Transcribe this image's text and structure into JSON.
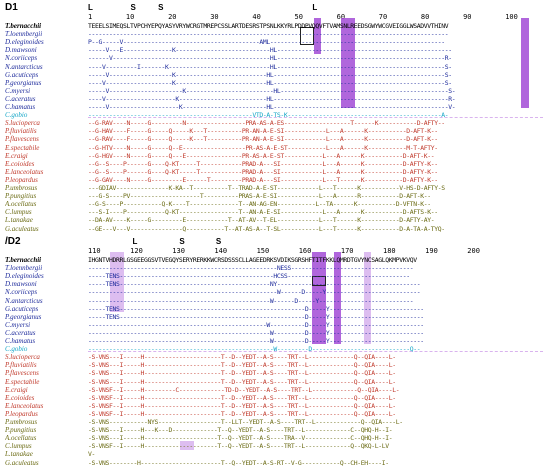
{
  "colors": {
    "bold_black": "#000000",
    "blue_group": "#1f2c9c",
    "gobio": "#14a6c7",
    "red_group": "#c0392b",
    "olive_group": "#6b6b14",
    "highlight": "#a24bd6"
  },
  "panels": [
    {
      "label": "D1",
      "markers": "L                 S          S                                                                   L",
      "ruler": "1        10        20        30        40        50        60        70        80        90        100",
      "rows": [
        {
          "species": "T.bernacchii",
          "seq": "TEEELSIMEQSLTVPCHYEPQYASYVRYWCRGTMREPCSSLARTDESRSTPSNLKKYRLPDDPVQQVFTVAMSNLREEDSGWYWCGVEIGGLWSADVVTHINV"
        },
        {
          "species": "T.loennbergii",
          "seq": "-------------------------------------------------------------------------------------------------------"
        },
        {
          "species": "D.eleginoides",
          "seq": "P--G-----V---------------------------------------AML--------------------------------------------------"
        },
        {
          "species": "D.mawsoni",
          "seq": "-----V---E--------------K---------------------------HL--------------------------------------------------"
        },
        {
          "species": "N.coriiceps",
          "seq": "------V---------------------------------------------HL------------------------------------------------R-"
        },
        {
          "species": "N.antarcticus",
          "seq": "----V---------I-------K-----------------------------HL------------------------------------------------S-"
        },
        {
          "species": "G.acuticeps",
          "seq": "-----V------------------K--------------------------HL-------------------------------------------------S-"
        },
        {
          "species": "P.georgianus",
          "seq": "----V-------------------K--------------------------HL-------------------------------------------------S-"
        },
        {
          "species": "C.myersi",
          "seq": "-----V---------------------K-------------------------HL------------------------------------------------S-"
        },
        {
          "species": "C.aceratus",
          "seq": "----V--------------------K-------------------------HL--------------------------------------------------R-"
        },
        {
          "species": "C.hamatus",
          "seq": "-----V--------------------K------------------------HL--------------------------------------------------V-"
        },
        {
          "species": "C.gobio",
          "seq": "-----------------------------------------------VTD-A-TS-K--------------------------------------------A-"
        },
        {
          "species": "S.lucioperca",
          "seq": "--G-RAV----N-----G---------N-----------------PRA-AS-A-ES-------------------T------K-----------D-AFTY--"
        },
        {
          "species": "P.fluviatilis",
          "seq": "--G-HAV----F-----G-----Q-----K---T----------PR-AN-A-E-SI------------L---A------K-----------D-AFT-K--"
        },
        {
          "species": "P.flavescens",
          "seq": "--G-RAV----F-----G-----Q-----K---T----------PR-AN-A-E-SI------------L---A------K-----------D-AFT-K--"
        },
        {
          "species": "E.spectabile",
          "seq": "--G-HTV----N-----G-----Q--E------------------PR-AS-A-E-ST-----------L---A------K-----------M-T-AFTY-"
        },
        {
          "species": "E.craigi",
          "seq": "--G-HGV----N-----G-----Q---E----------------PR-AS-A-E-ST-----------L---A------K-----------D-AFT-K--"
        },
        {
          "species": "E.coioides",
          "seq": "--G--S----P------G----Q-KT-----T------------PRAD-A---SI------------L---A------K-----------D-AFTY-K--"
        },
        {
          "species": "E.lanceolatus",
          "seq": "--G--S----P------G----Q-KT-----T------------PRAD-A---SI------------L---A------K-----------D-AFTY-K--"
        },
        {
          "species": "P.leopardus",
          "seq": "--G-GAV----N-----G---------E------T---------PRAD-A---SI------------L---T------K-----------D-AFTY-K--"
        },
        {
          "species": "P.umbrosus",
          "seq": "---GDIAV---------------K-KA--T----------T--TRAD-A-E-ST------------L---T------K-----------V-HS-D-AFTY-S"
        },
        {
          "species": "P.pungitius",
          "seq": "---G-S----PV--------------------T----------PRAS-A-E-SI------------L---A------R-----------D-AFT-K--"
        },
        {
          "species": "A.ocellatus",
          "seq": "--G-S----P-----------Q-K----T--------------T--AN-AG-EN-----------L--TA------K-----------D-VFTN-K--"
        },
        {
          "species": "C.lumpus",
          "seq": "---S-I----P-----------Q-KT-----------------T--AN-A-E-SI------------L---A------K-----------D-AFTS-K--"
        },
        {
          "species": "L.tanakae",
          "seq": "--DA-AV----K-----G---------E------------T--AT-AV--T-EL------------L---T------K-----------D-AFTY-AY-"
        },
        {
          "species": "G.aculeatus",
          "seq": "--GE---V---V---------------Q-----------T--AT-AS-A--T-SL-----------L---T------K-----------D-A-TA-A-TYQ-"
        }
      ]
    },
    {
      "label": "/D2",
      "markers": "                    L                   S              S",
      "ruler": "110       120       130       140       150       160       170       180       190       200",
      "rows": [
        {
          "species": "T.bernacchii",
          "seq": "IHGNTVHDRRLGSGEEGGSVTVEGQYSERYRERKKWCRSDSSSCLLAGEEDRKSVDIKSGRSHFTITFKKLQMRDTGVYNCSAGLQKMPVKVQV"
        },
        {
          "species": "T.loennbergii",
          "seq": "------------------------------------------------------NESS-----------------------------------"
        },
        {
          "species": "D.eleginoides",
          "seq": "-----TENS--------------------------------------------HCSS-----------------------------------"
        },
        {
          "species": "D.mawsoni",
          "seq": "-----TENS-------------------------------------------NY-----------------------------------------"
        },
        {
          "species": "N.coriiceps",
          "seq": "------------------------------------------------------W------D-----Y---------------------------"
        },
        {
          "species": "N.antarcticus",
          "seq": "----------------------------------------------------W------D-----Y---------------------------"
        },
        {
          "species": "G.acuticeps",
          "seq": "-----TENS-----------------------------------------------------D-----Y---------------------------"
        },
        {
          "species": "P.georgianus",
          "seq": "-----TENS-----------------------------------------------------D-----Y---------------------------"
        },
        {
          "species": "C.myersi",
          "seq": "---------------------------------------------------W----------D-----Y---------------------------"
        },
        {
          "species": "C.aceratus",
          "seq": "----------------------------------------------------W---------D-----Y---------------------------"
        },
        {
          "species": "C.hamatus",
          "seq": "----------------------------------------------------W---------D-----Y---------------------------"
        },
        {
          "species": "C.gobio",
          "seq": "-----------------------------------------------------W---------D----------------------------Q--"
        },
        {
          "species": "S.lucioperca",
          "seq": "-S-VNS---I-----H----------------------T--D--YEDT--A-S----TRT--L-------------Q--QIA----L-"
        },
        {
          "species": "P.fluviatilis",
          "seq": "-S-VNS---I-----H----------------------T--D--YEDT--A-S----TRT--L-------------Q--QIA----L-"
        },
        {
          "species": "P.flavescens",
          "seq": "-S-VNS---I-----H----------------------T--D--YEDT--A-S----TRT--L-------------Q--QIA----L-"
        },
        {
          "species": "E.spectabile",
          "seq": "-S-VNS---I-----H----------------------T--D--YEDT--A-S----TRT--L-------------Q--QIA----L-"
        },
        {
          "species": "E.craigi",
          "seq": "-S-VNSF--I-----H---------C-------------TD-D--YEDT--A-S----TRT--L-------------Q--QIA----L-"
        },
        {
          "species": "E.coioides",
          "seq": "-S-VNSF--I-----H----------------------T--D--YEDT--A-S----TRT--L-------------Q--QIA----L-"
        },
        {
          "species": "E.lanceolatus",
          "seq": "-S-VNSF--I-----H----------------------T--D--YEDT--A-S----TRT--L-------------Q--QIA----L-"
        },
        {
          "species": "P.leopardus",
          "seq": "-S-VNSF--I-----H----------------------T--D--YEDT--A-S----TRT--L-------------Q--QIA----L-"
        },
        {
          "species": "P.umbrosus",
          "seq": "-S-VNS-----------NYS------------------T--LLT--YEDT--A-S----TRT--L-------------Q--QIA----L-"
        },
        {
          "species": "P.pungitius",
          "seq": "-S-VNS---I-----H---K---D-------------T--Q--YEDT--A-S----TRT--L-------------C--QHQ-H--I-"
        },
        {
          "species": "A.ocellatus",
          "seq": "-S-VNS---I-----H---------------------T--Q--YEDT--A-S----TRA--V-------------C--QHQ-H--I-"
        },
        {
          "species": "C.lumpus",
          "seq": "-S-VNSF--I-----H---------------------T--Q--YEDT--A-S----TRT--L-------------Q--QKQ-L-LV"
        },
        {
          "species": "L.tanakae",
          "seq": "V-"
        },
        {
          "species": "G.aculeatus",
          "seq": "-S-VNS--------H-----------------------T--Q--YEDT--A-S-RT--V-G-----------Q--CH-EH----I-"
        }
      ]
    }
  ]
}
